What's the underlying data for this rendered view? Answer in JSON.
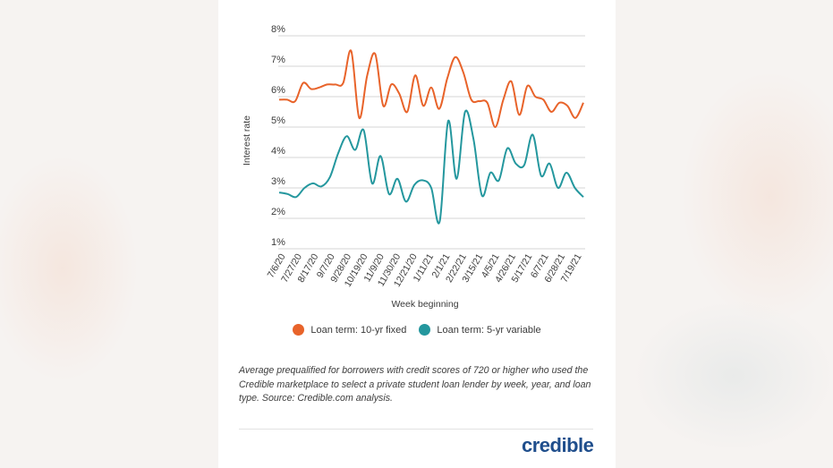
{
  "chart_data": {
    "type": "line",
    "title": "",
    "xlabel": "Week beginning",
    "ylabel": "Interest rate",
    "ylim": [
      1,
      8
    ],
    "y_tick_labels": [
      "8%",
      "7%",
      "6%",
      "5%",
      "4%",
      "3%",
      "2%",
      "1%"
    ],
    "x_tick_labels": [
      "7/6/20",
      "7/27/20",
      "8/17/20",
      "9/7/20",
      "9/28/20",
      "10/19/20",
      "11/9/20",
      "11/30/20",
      "12/21/20",
      "1/11/21",
      "2/1/21",
      "2/22/21",
      "3/15/21",
      "4/5/21",
      "4/26/21",
      "5/17/21",
      "6/7/21",
      "6/28/21",
      "7/19/21"
    ],
    "grid": true,
    "legend_position": "bottom",
    "series": [
      {
        "name": "Loan term: 10-yr fixed",
        "color": "#e8632a",
        "values": [
          5.9,
          5.9,
          5.85,
          6.45,
          6.25,
          6.3,
          6.4,
          6.4,
          6.45,
          7.5,
          5.3,
          6.7,
          7.4,
          5.7,
          6.4,
          6.1,
          5.5,
          6.7,
          5.7,
          6.3,
          5.6,
          6.6,
          7.3,
          6.8,
          5.9,
          5.85,
          5.8,
          5.0,
          5.9,
          6.5,
          5.4,
          6.35,
          6.0,
          5.9,
          5.5,
          5.8,
          5.7,
          5.3,
          5.8
        ]
      },
      {
        "name": "Loan term: 5-yr variable",
        "color": "#24979e",
        "values": [
          2.85,
          2.8,
          2.7,
          3.0,
          3.15,
          3.05,
          3.35,
          4.15,
          4.7,
          4.25,
          4.9,
          3.15,
          4.05,
          2.8,
          3.3,
          2.55,
          3.1,
          3.25,
          3.0,
          1.9,
          5.2,
          3.3,
          5.5,
          4.6,
          2.75,
          3.5,
          3.25,
          4.3,
          3.8,
          3.75,
          4.75,
          3.4,
          3.8,
          3.0,
          3.5,
          3.0,
          2.7
        ]
      }
    ]
  },
  "legend": {
    "item1": "Loan term: 10-yr fixed",
    "item2": "Loan term: 5-yr variable"
  },
  "caption": "Average prequalified for borrowers with credit scores of 720 or higher who used the Credible marketplace to select a private student loan lender by week, year, and loan type. Source: Credible.com analysis.",
  "brand": {
    "logo_text": "credible",
    "logo_color": "#1f4e8c"
  }
}
